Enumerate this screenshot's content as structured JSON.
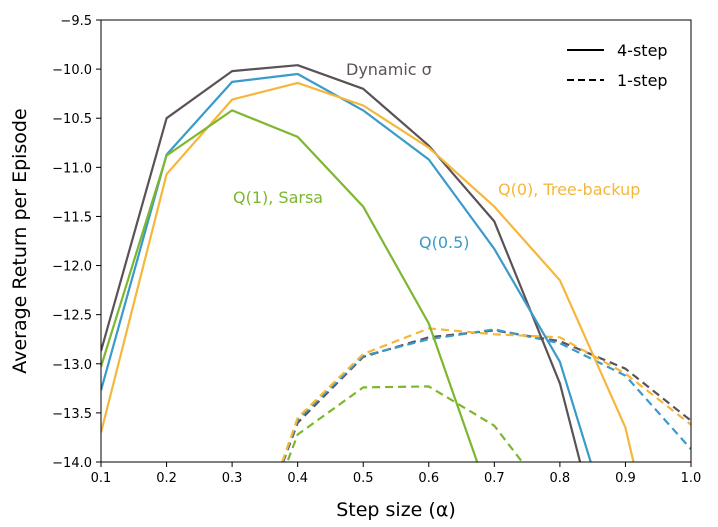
{
  "chart_data": {
    "type": "line",
    "xlabel": "Step size (α)",
    "ylabel": "Average Return per Episode",
    "xlim": [
      0.1,
      1.0
    ],
    "ylim": [
      -14.0,
      -9.5
    ],
    "x_ticks": [
      "0.1",
      "0.2",
      "0.3",
      "0.4",
      "0.5",
      "0.6",
      "0.7",
      "0.8",
      "0.9",
      "1.0"
    ],
    "y_ticks": [
      "−9.5",
      "−10.0",
      "−10.5",
      "−11.0",
      "−11.5",
      "−12.0",
      "−12.5",
      "−13.0",
      "−13.5",
      "−14.0"
    ],
    "legend": {
      "placement": "top-right",
      "entries": [
        {
          "label": "4-step",
          "style": "solid"
        },
        {
          "label": "1-step",
          "style": "dashed"
        }
      ]
    },
    "series": [
      {
        "name": "Dynamic σ",
        "color": "#5b5256",
        "style": "solid",
        "x": [
          0.1,
          0.2,
          0.3,
          0.4,
          0.5,
          0.6,
          0.7,
          0.8,
          0.85
        ],
        "y": [
          -12.87,
          -10.5,
          -10.02,
          -9.96,
          -10.2,
          -10.78,
          -11.55,
          -13.2,
          -14.5
        ]
      },
      {
        "name": "Q(0.5)",
        "color": "#3a9ac9",
        "style": "solid",
        "x": [
          0.1,
          0.2,
          0.3,
          0.4,
          0.5,
          0.6,
          0.7,
          0.8,
          0.87
        ],
        "y": [
          -13.27,
          -10.87,
          -10.13,
          -10.05,
          -10.42,
          -10.92,
          -11.83,
          -12.98,
          -14.5
        ]
      },
      {
        "name": "Q(0), Tree-backup",
        "color": "#f5b73b",
        "style": "solid",
        "x": [
          0.1,
          0.2,
          0.3,
          0.4,
          0.5,
          0.6,
          0.7,
          0.8,
          0.9,
          0.93
        ],
        "y": [
          -13.7,
          -11.07,
          -10.31,
          -10.14,
          -10.37,
          -10.8,
          -11.4,
          -12.15,
          -13.65,
          -14.5
        ]
      },
      {
        "name": "Q(1), Sarsa",
        "color": "#7db72f",
        "style": "solid",
        "x": [
          0.1,
          0.2,
          0.3,
          0.4,
          0.5,
          0.6,
          0.7
        ],
        "y": [
          -13.03,
          -10.88,
          -10.42,
          -10.69,
          -11.4,
          -12.59,
          -14.5
        ]
      },
      {
        "name": "",
        "color": "#5b5256",
        "style": "dashed",
        "x": [
          0.35,
          0.4,
          0.5,
          0.6,
          0.7,
          0.8,
          0.9,
          1.0
        ],
        "y": [
          -14.5,
          -13.6,
          -12.93,
          -12.73,
          -12.66,
          -12.77,
          -13.05,
          -13.58
        ]
      },
      {
        "name": "",
        "color": "#3a9ac9",
        "style": "dashed",
        "x": [
          0.35,
          0.4,
          0.5,
          0.6,
          0.7,
          0.8,
          0.9,
          1.0
        ],
        "y": [
          -14.5,
          -13.57,
          -12.92,
          -12.75,
          -12.65,
          -12.79,
          -13.12,
          -13.87
        ]
      },
      {
        "name": "",
        "color": "#f5b73b",
        "style": "dashed",
        "x": [
          0.35,
          0.4,
          0.5,
          0.6,
          0.7,
          0.8,
          0.9,
          1.0
        ],
        "y": [
          -14.5,
          -13.55,
          -12.9,
          -12.64,
          -12.7,
          -12.73,
          -13.1,
          -13.62
        ]
      },
      {
        "name": "",
        "color": "#7db72f",
        "style": "dashed",
        "x": [
          0.35,
          0.4,
          0.5,
          0.6,
          0.7,
          0.8
        ],
        "y": [
          -14.6,
          -13.72,
          -13.24,
          -13.23,
          -13.63,
          -14.5
        ]
      }
    ]
  }
}
